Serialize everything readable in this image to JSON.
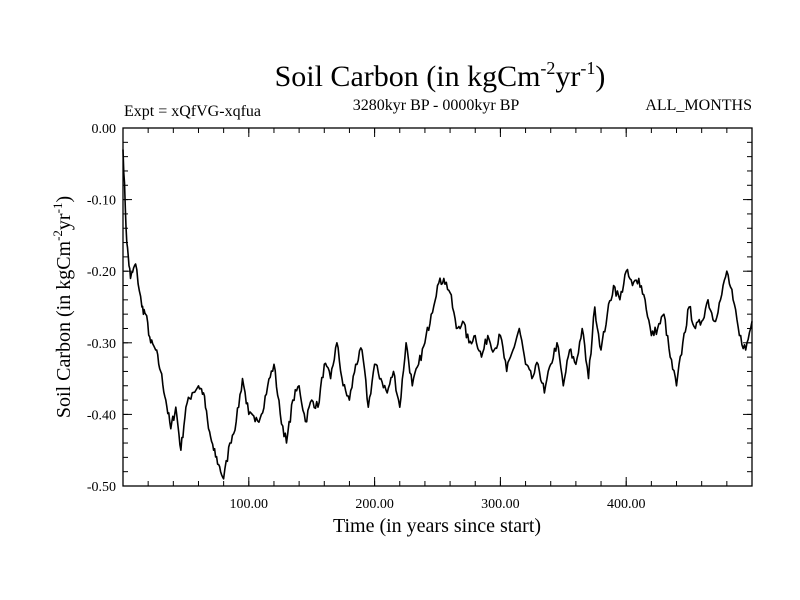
{
  "header": {
    "title_main": "Soil Carbon (in kgCm",
    "title_exp1": "-2",
    "title_mid": "yr",
    "title_exp2": "-1",
    "title_end": ")",
    "expt": "Expt = xQfVG-xqfua",
    "period": "3280kyr BP - 0000kyr BP",
    "months": "ALL_MONTHS"
  },
  "chart_data": {
    "type": "line",
    "title": "Soil Carbon (in kgCm-2yr-1)",
    "subtitle_left": "Expt = xQfVG-xqfua",
    "subtitle_center": "3280kyr BP - 0000kyr BP",
    "subtitle_right": "ALL_MONTHS",
    "xlabel": "Time (in years since start)",
    "ylabel_parts": [
      "Soil Carbon (in kgCm",
      "-2",
      "yr",
      "-1",
      ")"
    ],
    "xlim": [
      0,
      500
    ],
    "ylim": [
      -0.5,
      0.0
    ],
    "xticks": [
      100,
      200,
      300,
      400
    ],
    "xtick_labels": [
      "100.00",
      "200.00",
      "300.00",
      "400.00"
    ],
    "yticks": [
      0.0,
      -0.1,
      -0.2,
      -0.3,
      -0.4,
      -0.5
    ],
    "ytick_labels": [
      "0.00",
      "-0.10",
      "-0.20",
      "-0.30",
      "-0.40",
      "-0.50"
    ],
    "grid": false,
    "series": [
      {
        "name": "Soil Carbon",
        "color": "#000000",
        "x": [
          0,
          3,
          6,
          10,
          15,
          18,
          22,
          26,
          30,
          34,
          38,
          42,
          46,
          50,
          55,
          60,
          64,
          68,
          72,
          76,
          80,
          85,
          90,
          95,
          100,
          105,
          110,
          115,
          120,
          125,
          130,
          135,
          140,
          145,
          150,
          155,
          160,
          165,
          170,
          175,
          180,
          185,
          190,
          195,
          200,
          205,
          210,
          215,
          220,
          225,
          230,
          235,
          240,
          245,
          250,
          255,
          260,
          265,
          270,
          275,
          280,
          285,
          290,
          295,
          300,
          305,
          310,
          315,
          320,
          325,
          330,
          335,
          340,
          345,
          350,
          355,
          360,
          365,
          370,
          375,
          380,
          385,
          390,
          395,
          400,
          405,
          410,
          415,
          420,
          425,
          430,
          435,
          440,
          445,
          450,
          455,
          460,
          465,
          470,
          475,
          480,
          485,
          490,
          495,
          500
        ],
        "y": [
          -0.03,
          -0.16,
          -0.21,
          -0.19,
          -0.25,
          -0.26,
          -0.3,
          -0.31,
          -0.34,
          -0.38,
          -0.42,
          -0.39,
          -0.45,
          -0.39,
          -0.37,
          -0.36,
          -0.37,
          -0.42,
          -0.45,
          -0.47,
          -0.49,
          -0.44,
          -0.41,
          -0.35,
          -0.4,
          -0.41,
          -0.4,
          -0.36,
          -0.33,
          -0.4,
          -0.44,
          -0.38,
          -0.36,
          -0.41,
          -0.38,
          -0.39,
          -0.33,
          -0.35,
          -0.3,
          -0.36,
          -0.38,
          -0.33,
          -0.31,
          -0.39,
          -0.33,
          -0.35,
          -0.37,
          -0.34,
          -0.39,
          -0.3,
          -0.36,
          -0.33,
          -0.3,
          -0.26,
          -0.22,
          -0.21,
          -0.23,
          -0.28,
          -0.27,
          -0.3,
          -0.29,
          -0.32,
          -0.29,
          -0.31,
          -0.29,
          -0.34,
          -0.31,
          -0.28,
          -0.33,
          -0.35,
          -0.33,
          -0.37,
          -0.33,
          -0.3,
          -0.36,
          -0.31,
          -0.33,
          -0.28,
          -0.35,
          -0.25,
          -0.31,
          -0.26,
          -0.22,
          -0.24,
          -0.2,
          -0.22,
          -0.21,
          -0.24,
          -0.29,
          -0.28,
          -0.26,
          -0.32,
          -0.36,
          -0.3,
          -0.25,
          -0.28,
          -0.27,
          -0.24,
          -0.27,
          -0.24,
          -0.2,
          -0.24,
          -0.29,
          -0.31,
          -0.27
        ]
      }
    ]
  }
}
